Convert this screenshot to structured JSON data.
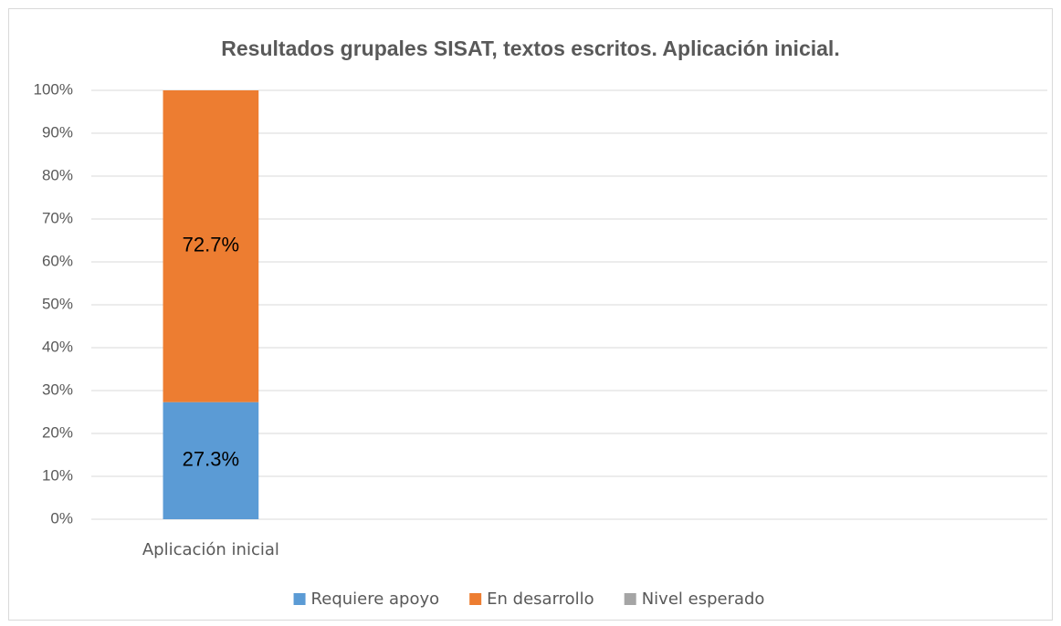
{
  "chart_data": {
    "type": "stacked_bar",
    "title": "Resultados grupales SISAT, textos escritos. Aplicación inicial.",
    "categories": [
      "Aplicación inicial",
      null,
      null,
      null
    ],
    "series": [
      {
        "name": "Requiere apoyo",
        "color": "#5b9bd5",
        "values": [
          27.3,
          null,
          null,
          null
        ],
        "value_labels": [
          "27.3%",
          null,
          null,
          null
        ]
      },
      {
        "name": "En desarrollo",
        "color": "#ed7d31",
        "values": [
          72.7,
          null,
          null,
          null
        ],
        "value_labels": [
          "72.7%",
          null,
          null,
          null
        ]
      },
      {
        "name": "Nivel esperado",
        "color": "#a5a5a5",
        "values": [
          0,
          null,
          null,
          null
        ]
      }
    ],
    "ylim": [
      0,
      100
    ],
    "yticks": [
      {
        "value": 0,
        "label": "0%"
      },
      {
        "value": 10,
        "label": "10%"
      },
      {
        "value": 20,
        "label": "20%"
      },
      {
        "value": 30,
        "label": "30%"
      },
      {
        "value": 40,
        "label": "40%"
      },
      {
        "value": 50,
        "label": "50%"
      },
      {
        "value": 60,
        "label": "60%"
      },
      {
        "value": 70,
        "label": "70%"
      },
      {
        "value": 80,
        "label": "80%"
      },
      {
        "value": 90,
        "label": "90%"
      },
      {
        "value": 100,
        "label": "100%"
      }
    ],
    "grid": true,
    "legend": "bottom"
  }
}
